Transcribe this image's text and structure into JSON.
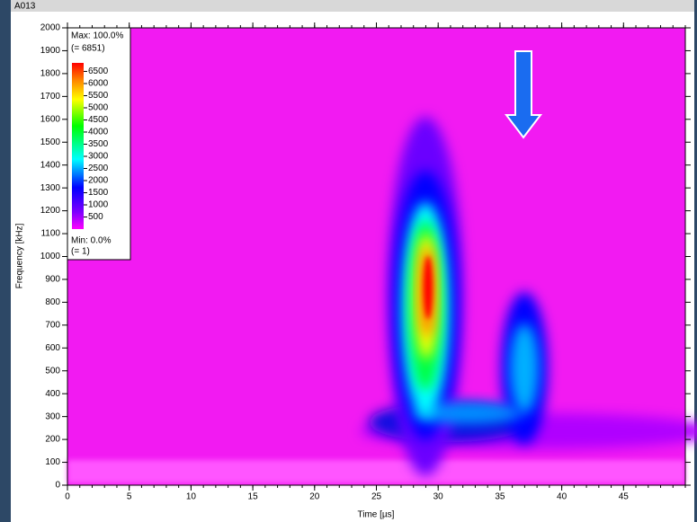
{
  "chart_data": {
    "type": "heatmap",
    "title": "A013",
    "xlabel": "Time [µs]",
    "ylabel": "Frequency [kHz]",
    "xlim": [
      0,
      50
    ],
    "xticks": [
      0,
      5,
      10,
      15,
      20,
      25,
      30,
      35,
      40,
      45
    ],
    "ylim": [
      0,
      2000
    ],
    "yticks": [
      0,
      100,
      200,
      300,
      400,
      500,
      600,
      700,
      800,
      900,
      1000,
      1100,
      1200,
      1300,
      1400,
      1500,
      1600,
      1700,
      1800,
      1900,
      2000
    ],
    "colorbar": {
      "max_label": "Max: 100.0%",
      "max": {
        "value": 6851,
        "label": "(= 6851)"
      },
      "min_label": "Min: 0.0%",
      "min": {
        "value": 1,
        "label": "(= 1)"
      },
      "ticks": [
        6500,
        6000,
        5500,
        5000,
        4500,
        4000,
        3500,
        3000,
        2500,
        2000,
        1500,
        1000,
        500
      ]
    }
  }
}
